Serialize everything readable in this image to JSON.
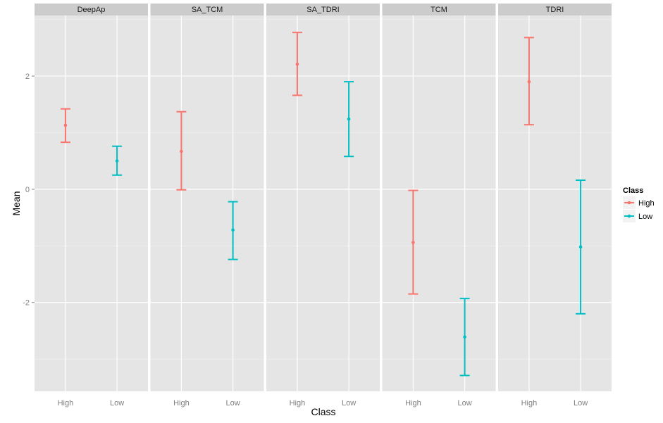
{
  "chart_data": {
    "type": "errorbar",
    "xlabel": "Class",
    "ylabel": "Mean",
    "ylim": [
      -3.57,
      3.07
    ],
    "yticks": [
      -2,
      0,
      2
    ],
    "ytick_labels": [
      "-2",
      "0",
      "2"
    ],
    "categories": [
      "High",
      "Low"
    ],
    "legend": {
      "title": "Class",
      "entries": [
        "High",
        "Low"
      ],
      "placement": "right"
    },
    "colors": {
      "High": "#F8766D",
      "Low": "#00BFC4"
    },
    "panels": [
      {
        "name": "DeepAp",
        "points": [
          {
            "class": "High",
            "mean": 1.13,
            "lower": 0.83,
            "upper": 1.42
          },
          {
            "class": "Low",
            "mean": 0.5,
            "lower": 0.25,
            "upper": 0.76
          }
        ]
      },
      {
        "name": "SA_TCM",
        "points": [
          {
            "class": "High",
            "mean": 0.67,
            "lower": -0.01,
            "upper": 1.37
          },
          {
            "class": "Low",
            "mean": -0.72,
            "lower": -1.24,
            "upper": -0.22
          }
        ]
      },
      {
        "name": "SA_TDRI",
        "points": [
          {
            "class": "High",
            "mean": 2.21,
            "lower": 1.66,
            "upper": 2.77
          },
          {
            "class": "Low",
            "mean": 1.24,
            "lower": 0.58,
            "upper": 1.9
          }
        ]
      },
      {
        "name": "TCM",
        "points": [
          {
            "class": "High",
            "mean": -0.94,
            "lower": -1.85,
            "upper": -0.02
          },
          {
            "class": "Low",
            "mean": -2.61,
            "lower": -3.29,
            "upper": -1.93
          }
        ]
      },
      {
        "name": "TDRI",
        "points": [
          {
            "class": "High",
            "mean": 1.9,
            "lower": 1.14,
            "upper": 2.68
          },
          {
            "class": "Low",
            "mean": -1.02,
            "lower": -2.2,
            "upper": 0.16
          }
        ]
      }
    ]
  }
}
